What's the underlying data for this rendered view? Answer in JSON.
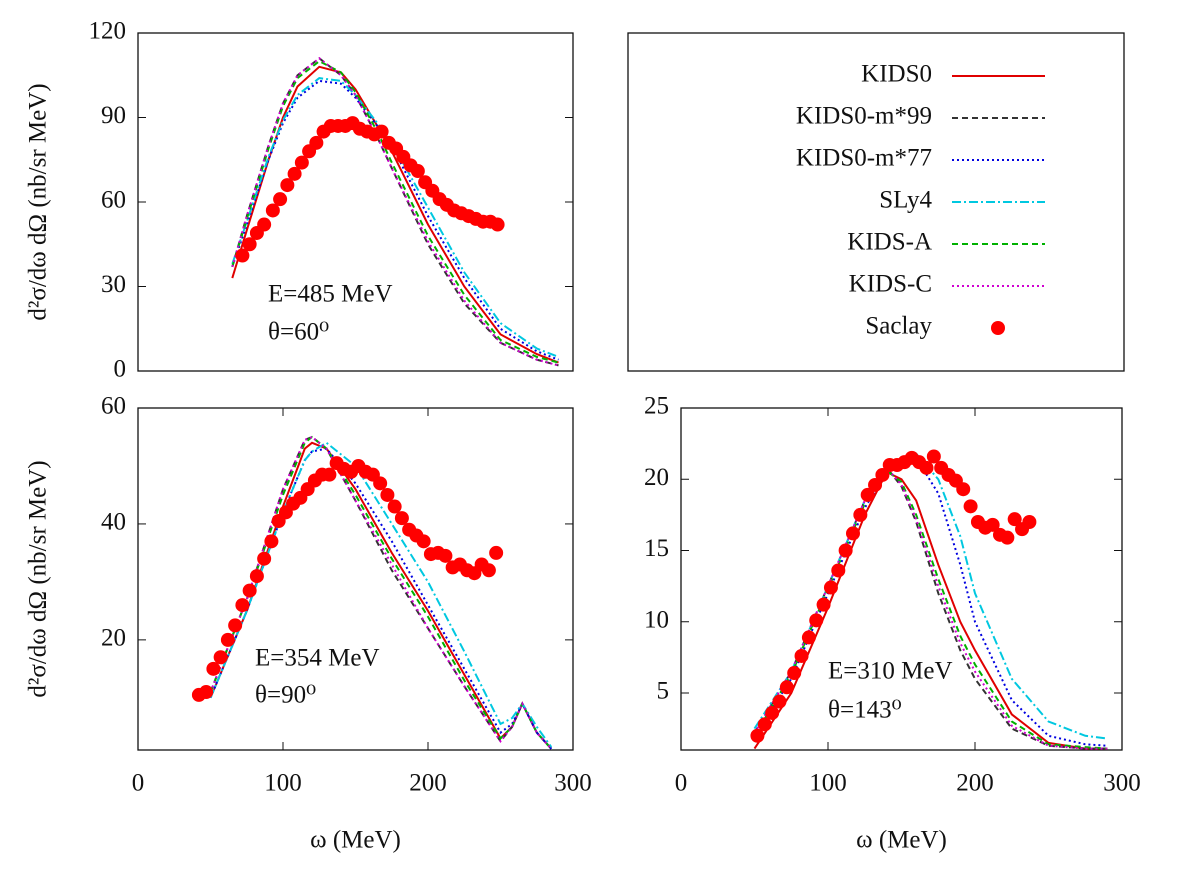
{
  "chart_data": [
    {
      "type": "line",
      "ylabel": "d²σ/dω dΩ (nb/sr MeV)",
      "annotations": [
        "E=485 MeV",
        "θ=60⁰"
      ],
      "xlim": [
        0,
        300
      ],
      "ylim": [
        0,
        120
      ],
      "yticks": [
        0,
        30,
        60,
        90,
        120
      ],
      "legend": "separate panel",
      "series": [
        {
          "name": "KIDS0",
          "color": "#e00000",
          "style": "solid",
          "x": [
            65,
            75,
            90,
            100,
            110,
            125,
            140,
            150,
            165,
            175,
            200,
            225,
            250,
            275,
            290
          ],
          "values": [
            33,
            50,
            75,
            90,
            101,
            108,
            106,
            100,
            87,
            78,
            52,
            30,
            13,
            6,
            3
          ]
        },
        {
          "name": "KIDS0-m*99",
          "color": "#333333",
          "style": "dashed",
          "x": [
            65,
            75,
            90,
            100,
            110,
            125,
            140,
            150,
            165,
            175,
            200,
            225,
            250,
            275,
            290
          ],
          "values": [
            37,
            55,
            80,
            95,
            105,
            111,
            105,
            98,
            83,
            72,
            45,
            24,
            10,
            4,
            2
          ]
        },
        {
          "name": "KIDS0-m*77",
          "color": "#0000e0",
          "style": "dotted",
          "x": [
            65,
            75,
            90,
            100,
            110,
            125,
            140,
            150,
            165,
            175,
            200,
            225,
            250,
            275,
            290
          ],
          "values": [
            37,
            52,
            75,
            88,
            97,
            103,
            102,
            97,
            87,
            80,
            55,
            33,
            15,
            7,
            4
          ]
        },
        {
          "name": "SLy4",
          "color": "#00c8e0",
          "style": "dashdot",
          "x": [
            65,
            75,
            90,
            100,
            110,
            125,
            140,
            150,
            165,
            175,
            200,
            225,
            250,
            275,
            290
          ],
          "values": [
            38,
            53,
            76,
            89,
            98,
            104,
            103,
            98,
            88,
            81,
            58,
            35,
            17,
            8,
            5
          ]
        },
        {
          "name": "KIDS-A",
          "color": "#00b000",
          "style": "dashed",
          "x": [
            65,
            75,
            90,
            100,
            110,
            125,
            140,
            150,
            165,
            175,
            200,
            225,
            250,
            275,
            290
          ],
          "values": [
            37,
            54,
            79,
            94,
            104,
            110,
            106,
            99,
            85,
            74,
            48,
            27,
            11,
            5,
            3
          ]
        },
        {
          "name": "KIDS-C",
          "color": "#d000d0",
          "style": "dotted",
          "x": [
            65,
            75,
            90,
            100,
            110,
            125,
            140,
            150,
            165,
            175,
            200,
            225,
            250,
            275,
            290
          ],
          "values": [
            37,
            55,
            80,
            95,
            105,
            111,
            105,
            98,
            83,
            72,
            46,
            25,
            10,
            4,
            2
          ]
        },
        {
          "name": "Saclay",
          "color": "#ff0000",
          "style": "points",
          "x": [
            72,
            77,
            82,
            87,
            93,
            98,
            103,
            108,
            113,
            118,
            123,
            128,
            133,
            138,
            143,
            148,
            153,
            158,
            163,
            168,
            173,
            178,
            183,
            188,
            193,
            198,
            203,
            208,
            213,
            218,
            223,
            228,
            233,
            238,
            243,
            248
          ],
          "values": [
            41,
            45,
            49,
            52,
            57,
            61,
            66,
            70,
            74,
            78,
            81,
            85,
            87,
            87,
            87,
            88,
            86,
            85,
            84,
            85,
            81,
            79,
            76,
            73,
            71,
            67,
            64,
            61,
            59,
            57,
            56,
            55,
            54,
            53,
            53,
            52
          ]
        }
      ]
    },
    {
      "type": "line",
      "ylabel": "d²σ/dω dΩ (nb/sr MeV)",
      "xlabel": "ω (MeV)",
      "annotations": [
        "E=354 MeV",
        "θ=90⁰"
      ],
      "xlim": [
        0,
        300
      ],
      "ylim": [
        1,
        60
      ],
      "xticks": [
        0,
        100,
        200,
        300
      ],
      "yticks": [
        20,
        40,
        60
      ],
      "series": [
        {
          "name": "KIDS0",
          "color": "#e00000",
          "style": "solid",
          "x": [
            50,
            75,
            100,
            115,
            120,
            130,
            150,
            175,
            200,
            225,
            250,
            258,
            265,
            275,
            285
          ],
          "values": [
            10,
            25,
            43,
            53,
            54,
            53,
            46,
            35,
            25,
            14,
            3,
            5,
            9,
            4,
            1.2
          ]
        },
        {
          "name": "KIDS0-m*99",
          "color": "#333333",
          "style": "dashed",
          "x": [
            50,
            75,
            100,
            115,
            120,
            130,
            150,
            175,
            200,
            225,
            250,
            258,
            265,
            275,
            285
          ],
          "values": [
            11,
            27,
            46,
            54.5,
            55,
            53,
            44,
            32,
            22,
            12,
            2.5,
            5,
            9,
            4,
            1.2
          ]
        },
        {
          "name": "KIDS0-m*77",
          "color": "#0000e0",
          "style": "dotted",
          "x": [
            50,
            75,
            100,
            115,
            120,
            130,
            150,
            175,
            200,
            225,
            250,
            258,
            265,
            275,
            285
          ],
          "values": [
            10,
            25,
            42,
            51,
            52.5,
            53,
            47,
            37,
            26,
            15,
            4,
            5.5,
            9,
            4,
            1.2
          ]
        },
        {
          "name": "SLy4",
          "color": "#00c8e0",
          "style": "dashdot",
          "x": [
            50,
            75,
            100,
            115,
            120,
            130,
            150,
            175,
            200,
            225,
            250,
            258,
            265,
            275,
            285
          ],
          "values": [
            10,
            25,
            42,
            51,
            52.5,
            54,
            50,
            40,
            30,
            18,
            5.5,
            6.5,
            9,
            5,
            1.5
          ]
        },
        {
          "name": "KIDS-A",
          "color": "#00b000",
          "style": "dashed",
          "x": [
            50,
            75,
            100,
            115,
            120,
            130,
            150,
            175,
            200,
            225,
            250,
            258,
            265,
            275,
            285
          ],
          "values": [
            11,
            27,
            45,
            54,
            55,
            53,
            45,
            34,
            24,
            13,
            3,
            5,
            9,
            4,
            1.2
          ]
        },
        {
          "name": "KIDS-C",
          "color": "#d000d0",
          "style": "dotted",
          "x": [
            50,
            75,
            100,
            115,
            120,
            130,
            150,
            175,
            200,
            225,
            250,
            258,
            265,
            275,
            285
          ],
          "values": [
            11,
            27,
            46,
            54.5,
            55,
            53,
            44,
            33,
            22,
            12,
            2.5,
            5,
            9,
            4,
            1.2
          ]
        },
        {
          "name": "Saclay",
          "color": "#ff0000",
          "style": "points",
          "x": [
            42,
            47,
            52,
            57,
            62,
            67,
            72,
            77,
            82,
            87,
            92,
            97,
            102,
            107,
            112,
            117,
            122,
            127,
            132,
            137,
            142,
            147,
            152,
            157,
            162,
            167,
            172,
            177,
            182,
            187,
            192,
            197,
            202,
            207,
            212,
            217,
            222,
            227,
            232,
            237,
            242,
            247
          ],
          "values": [
            10.5,
            11,
            15,
            17,
            20,
            22.5,
            26,
            28.5,
            31,
            34,
            37,
            40.5,
            42,
            43.5,
            44.5,
            46,
            47.5,
            48.5,
            48.5,
            50.5,
            49.5,
            49,
            50,
            49,
            48.5,
            47,
            45,
            43,
            41,
            39,
            38,
            37,
            34.8,
            35,
            34.5,
            32.5,
            33,
            32,
            31.5,
            33,
            32,
            35
          ]
        }
      ]
    },
    {
      "type": "line",
      "xlabel": "ω (MeV)",
      "annotations": [
        "E=310 MeV",
        "θ=143⁰"
      ],
      "xlim": [
        0,
        300
      ],
      "ylim": [
        1,
        25
      ],
      "xticks": [
        0,
        100,
        200,
        300
      ],
      "yticks": [
        5,
        10,
        15,
        20,
        25
      ],
      "series": [
        {
          "name": "KIDS0",
          "color": "#e00000",
          "style": "solid",
          "x": [
            50,
            75,
            100,
            125,
            140,
            150,
            160,
            175,
            190,
            200,
            225,
            250,
            275,
            290
          ],
          "values": [
            1.1,
            5,
            11,
            17.5,
            20.5,
            20,
            18.5,
            14,
            10,
            8,
            3.5,
            1.5,
            1.1,
            1.1
          ]
        },
        {
          "name": "KIDS0-m*99",
          "color": "#333333",
          "style": "dashed",
          "x": [
            50,
            75,
            100,
            125,
            140,
            150,
            160,
            175,
            190,
            200,
            225,
            250,
            275,
            290
          ],
          "values": [
            2.2,
            6.5,
            12.5,
            18.5,
            20.8,
            19.5,
            17,
            12,
            8,
            6,
            2.5,
            1.3,
            1.1,
            1.1
          ]
        },
        {
          "name": "KIDS0-m*77",
          "color": "#0000e0",
          "style": "dotted",
          "x": [
            50,
            75,
            100,
            125,
            140,
            150,
            160,
            175,
            190,
            200,
            225,
            250,
            275,
            290
          ],
          "values": [
            2,
            6,
            12,
            18,
            20.5,
            21.5,
            21.5,
            19,
            14,
            10,
            4.5,
            2,
            1.4,
            1.3
          ]
        },
        {
          "name": "SLy4",
          "color": "#00c8e0",
          "style": "dashdot",
          "x": [
            50,
            75,
            100,
            125,
            140,
            150,
            160,
            175,
            190,
            200,
            225,
            250,
            275,
            290
          ],
          "values": [
            2.5,
            6.5,
            12.5,
            18.5,
            20.8,
            21.5,
            21.8,
            20,
            16,
            12,
            6,
            3,
            2,
            1.8
          ]
        },
        {
          "name": "KIDS-A",
          "color": "#00b000",
          "style": "dashed",
          "x": [
            50,
            75,
            100,
            125,
            140,
            150,
            160,
            175,
            190,
            200,
            225,
            250,
            275,
            290
          ],
          "values": [
            2,
            6.3,
            12.3,
            18.3,
            20.6,
            19.8,
            17.5,
            13,
            9,
            7,
            3,
            1.4,
            1.2,
            1.1
          ]
        },
        {
          "name": "KIDS-C",
          "color": "#d000d0",
          "style": "dotted",
          "x": [
            50,
            75,
            100,
            125,
            140,
            150,
            160,
            175,
            190,
            200,
            225,
            250,
            275,
            290
          ],
          "values": [
            2.2,
            6.5,
            12.5,
            18.5,
            20.8,
            19.6,
            17.2,
            12.5,
            8.5,
            6.5,
            2.7,
            1.3,
            1.1,
            1.1
          ]
        },
        {
          "name": "Saclay",
          "color": "#ff0000",
          "style": "points",
          "x": [
            52,
            57,
            62,
            67,
            72,
            77,
            82,
            87,
            92,
            97,
            102,
            107,
            112,
            117,
            122,
            127,
            132,
            137,
            142,
            147,
            152,
            157,
            162,
            167,
            172,
            177,
            182,
            187,
            192,
            197,
            202,
            207,
            212,
            217,
            222,
            227,
            232,
            237
          ],
          "values": [
            2,
            2.8,
            3.6,
            4.4,
            5.4,
            6.4,
            7.6,
            8.9,
            10.1,
            11.2,
            12.4,
            13.6,
            15,
            16.2,
            17.5,
            18.9,
            19.6,
            20.3,
            21,
            21,
            21.2,
            21.5,
            21.2,
            20.8,
            21.6,
            20.8,
            20.3,
            19.9,
            19.3,
            18.1,
            17,
            16.6,
            16.8,
            16.1,
            15.9,
            17.2,
            16.5,
            17
          ]
        }
      ]
    }
  ]
}
